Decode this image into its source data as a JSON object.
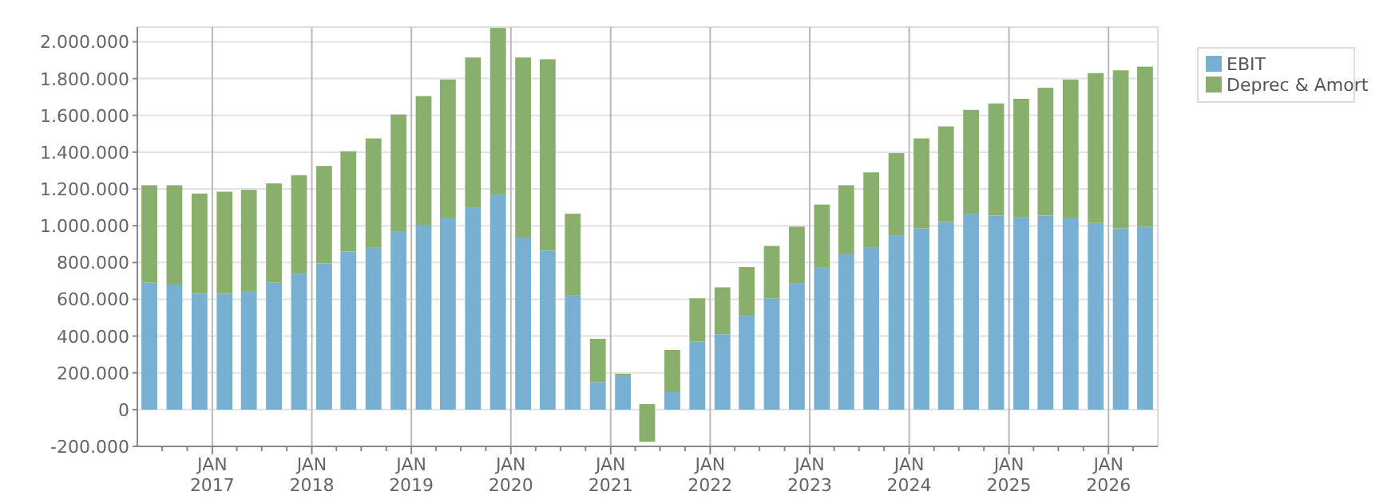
{
  "chart_data": {
    "type": "bar",
    "stacked": true,
    "x": [
      "2016-05-15",
      "2016-08-15",
      "2016-11-15",
      "2017-02-15",
      "2017-05-15",
      "2017-08-15",
      "2017-11-15",
      "2018-02-15",
      "2018-05-15",
      "2018-08-15",
      "2018-11-15",
      "2019-02-15",
      "2019-05-15",
      "2019-08-15",
      "2019-11-15",
      "2020-02-15",
      "2020-05-15",
      "2020-08-15",
      "2020-11-15",
      "2021-02-15",
      "2021-05-15",
      "2021-08-15",
      "2021-11-15",
      "2022-02-15",
      "2022-05-15",
      "2022-08-15",
      "2022-11-15",
      "2023-02-15",
      "2023-05-15",
      "2023-08-15",
      "2023-11-15",
      "2024-02-15",
      "2024-05-15",
      "2024-08-15",
      "2024-11-15",
      "2025-02-15",
      "2025-05-15",
      "2025-08-15",
      "2025-11-15",
      "2026-02-15",
      "2026-05-15"
    ],
    "series": [
      {
        "name": "EBIT",
        "color": "#77b0d2",
        "values": [
          690000,
          680000,
          630000,
          630000,
          645000,
          690000,
          740000,
          795000,
          860000,
          880000,
          970000,
          1005000,
          1040000,
          1100000,
          1170000,
          935000,
          865000,
          620000,
          150000,
          185000,
          null,
          95000,
          370000,
          410000,
          510000,
          605000,
          685000,
          775000,
          845000,
          880000,
          945000,
          985000,
          1020000,
          1065000,
          1055000,
          1045000,
          1055000,
          1040000,
          1015000,
          985000,
          995000
        ]
      },
      {
        "name": "Deprec & Amort",
        "color": "#88b06c",
        "values": [
          530000,
          540000,
          545000,
          555000,
          550000,
          540000,
          535000,
          530000,
          545000,
          595000,
          635000,
          700000,
          755000,
          815000,
          905000,
          980000,
          1040000,
          445000,
          235000,
          10000,
          205000,
          230000,
          235000,
          255000,
          265000,
          285000,
          310000,
          340000,
          375000,
          410000,
          450000,
          490000,
          520000,
          565000,
          610000,
          645000,
          695000,
          755000,
          815000,
          860000,
          870000
        ],
        "base": [
          null,
          null,
          null,
          null,
          null,
          null,
          null,
          null,
          null,
          null,
          null,
          null,
          null,
          null,
          null,
          null,
          null,
          null,
          null,
          null,
          -175000,
          null,
          null,
          null,
          null,
          null,
          null,
          null,
          null,
          null,
          null,
          null,
          null,
          null,
          null,
          null,
          null,
          null,
          null,
          null,
          null
        ]
      }
    ],
    "ylim": [
      -200000,
      2080000
    ],
    "yticks": [
      {
        "value": -200000,
        "label": "-200.000"
      },
      0,
      {
        "value": 200000,
        "label": "200.000"
      },
      {
        "value": 400000,
        "label": "400.000"
      },
      {
        "value": 600000,
        "label": "600.000"
      },
      {
        "value": 800000,
        "label": "800.000"
      },
      {
        "value": 1000000,
        "label": "1.000.000"
      },
      {
        "value": 1200000,
        "label": "1.200.000"
      },
      {
        "value": 1400000,
        "label": "1.400.000"
      },
      {
        "value": 1600000,
        "label": "1.600.000"
      },
      {
        "value": 1800000,
        "label": "1.800.000"
      },
      {
        "value": 2000000,
        "label": "2.000.000"
      }
    ],
    "xlim": [
      "2016-04-01",
      "2026-07-01"
    ],
    "xticks": [
      {
        "value": "2016-07-01",
        "label": null
      },
      {
        "value": "2016-10-01",
        "label": null
      },
      {
        "value": "2017-01-01",
        "label": "JAN 2017"
      },
      {
        "value": "2017-04-01",
        "label": null
      },
      {
        "value": "2017-07-01",
        "label": null
      },
      {
        "value": "2017-10-01",
        "label": null
      },
      {
        "value": "2018-01-01",
        "label": "JAN 2018"
      },
      {
        "value": "2018-04-01",
        "label": null
      },
      {
        "value": "2018-07-01",
        "label": null
      },
      {
        "value": "2018-10-01",
        "label": null
      },
      {
        "value": "2019-01-01",
        "label": "JAN 2019"
      },
      {
        "value": "2019-04-01",
        "label": null
      },
      {
        "value": "2019-07-01",
        "label": null
      },
      {
        "value": "2019-10-01",
        "label": null
      },
      {
        "value": "2020-01-01",
        "label": "JAN 2020"
      },
      {
        "value": "2020-04-01",
        "label": null
      },
      {
        "value": "2020-07-01",
        "label": null
      },
      {
        "value": "2020-10-01",
        "label": null
      },
      {
        "value": "2021-01-01",
        "label": "JAN 2021"
      },
      {
        "value": "2021-04-01",
        "label": null
      },
      {
        "value": "2021-07-01",
        "label": null
      },
      {
        "value": "2021-10-01",
        "label": null
      },
      {
        "value": "2022-01-01",
        "label": "JAN 2022"
      },
      {
        "value": "2022-04-01",
        "label": null
      },
      {
        "value": "2022-07-01",
        "label": null
      },
      {
        "value": "2022-10-01",
        "label": null
      },
      {
        "value": "2023-01-01",
        "label": "JAN 2023"
      },
      {
        "value": "2023-04-01",
        "label": null
      },
      {
        "value": "2023-07-01",
        "label": null
      },
      {
        "value": "2023-10-01",
        "label": null
      },
      {
        "value": "2024-01-01",
        "label": "JAN 2024"
      },
      {
        "value": "2024-04-01",
        "label": null
      },
      {
        "value": "2024-07-01",
        "label": null
      },
      {
        "value": "2024-10-01",
        "label": null
      },
      {
        "value": "2025-01-01",
        "label": "JAN 2025"
      },
      {
        "value": "2025-04-01",
        "label": null
      },
      {
        "value": "2025-07-01",
        "label": null
      },
      {
        "value": "2025-10-01",
        "label": null
      },
      {
        "value": "2026-01-01",
        "label": "JAN 2026"
      },
      {
        "value": "2026-04-01",
        "label": null
      }
    ],
    "grid": true,
    "legend": "top right"
  }
}
